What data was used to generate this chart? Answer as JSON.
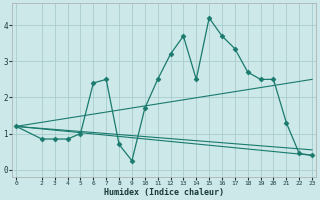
{
  "xlabel": "Humidex (Indice chaleur)",
  "bg_color": "#cce8e8",
  "grid_color": "#aacccc",
  "line_color": "#1a7a6e",
  "xticks": [
    0,
    2,
    3,
    4,
    5,
    6,
    7,
    8,
    9,
    10,
    11,
    12,
    13,
    14,
    15,
    16,
    17,
    18,
    19,
    20,
    21,
    22,
    23
  ],
  "yticks": [
    0,
    1,
    2,
    3,
    4
  ],
  "xlim": [
    -0.3,
    23.3
  ],
  "ylim": [
    -0.2,
    4.6
  ],
  "series": [
    {
      "x": [
        0,
        2,
        3,
        4,
        5,
        6,
        7,
        8,
        9,
        10,
        11,
        12,
        13,
        14,
        15,
        16,
        17,
        18,
        19,
        20,
        21,
        22,
        23
      ],
      "y": [
        1.2,
        0.85,
        0.85,
        0.85,
        1.0,
        2.4,
        2.5,
        0.7,
        0.25,
        1.7,
        2.5,
        3.2,
        3.7,
        2.5,
        4.2,
        3.7,
        3.35,
        2.7,
        2.5,
        2.5,
        1.3,
        0.45,
        0.4
      ],
      "marker": true
    },
    {
      "x": [
        0,
        23
      ],
      "y": [
        1.2,
        2.5
      ],
      "marker": false
    },
    {
      "x": [
        0,
        23
      ],
      "y": [
        1.2,
        0.4
      ],
      "marker": false
    },
    {
      "x": [
        0,
        23
      ],
      "y": [
        1.2,
        0.55
      ],
      "marker": false
    }
  ]
}
